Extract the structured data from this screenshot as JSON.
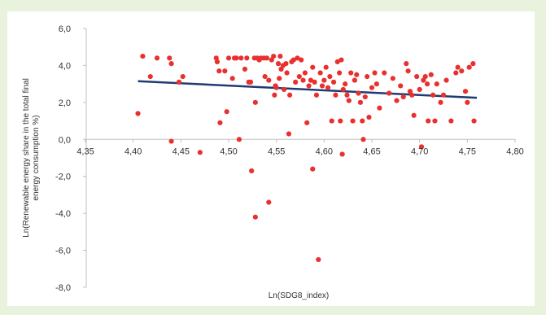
{
  "chart_data": {
    "type": "scatter",
    "title": "",
    "xlabel": "Ln(SDG8_index)",
    "ylabel": "Ln(Renewable energy share in the total final energy consumption %)",
    "ylabel_lines": [
      "Ln(Renewable energy share in the total final",
      "energy consumption %)"
    ],
    "xlim": [
      4.35,
      4.8
    ],
    "ylim": [
      -8.0,
      6.0
    ],
    "x_ticks": [
      4.35,
      4.4,
      4.45,
      4.5,
      4.55,
      4.6,
      4.65,
      4.7,
      4.75,
      4.8
    ],
    "x_tick_labels": [
      "4,35",
      "4,40",
      "4,45",
      "4,50",
      "4,55",
      "4,60",
      "4,65",
      "4,70",
      "4,75",
      "4,80"
    ],
    "y_ticks": [
      6.0,
      4.0,
      2.0,
      0.0,
      -2.0,
      -4.0,
      -6.0,
      -8.0
    ],
    "y_tick_labels": [
      "6,0",
      "4,0",
      "2,0",
      "0,0",
      "-2,0",
      "-4,0",
      "-6,0",
      "-8,0"
    ],
    "grid": false,
    "legend": "none",
    "point_color": "#e8312f",
    "trend_color": "#1f3b73",
    "trendline": {
      "x": [
        4.405,
        4.76
      ],
      "y": [
        3.15,
        2.25
      ]
    },
    "points": [
      [
        4.405,
        1.4
      ],
      [
        4.41,
        4.5
      ],
      [
        4.418,
        3.4
      ],
      [
        4.425,
        4.4
      ],
      [
        4.438,
        4.4
      ],
      [
        4.44,
        4.1
      ],
      [
        4.448,
        3.1
      ],
      [
        4.452,
        3.4
      ],
      [
        4.44,
        -0.1
      ],
      [
        4.47,
        -0.7
      ],
      [
        4.487,
        4.4
      ],
      [
        4.488,
        4.2
      ],
      [
        4.49,
        3.7
      ],
      [
        4.491,
        0.9
      ],
      [
        4.496,
        3.7
      ],
      [
        4.498,
        1.5
      ],
      [
        4.5,
        4.4
      ],
      [
        4.504,
        3.3
      ],
      [
        4.506,
        4.4
      ],
      [
        4.508,
        4.4
      ],
      [
        4.511,
        0.0
      ],
      [
        4.513,
        4.4
      ],
      [
        4.517,
        3.8
      ],
      [
        4.519,
        4.4
      ],
      [
        4.521,
        3.1
      ],
      [
        4.523,
        3.1
      ],
      [
        4.524,
        -1.7
      ],
      [
        4.527,
        4.4
      ],
      [
        4.528,
        2.0
      ],
      [
        4.528,
        -4.2
      ],
      [
        4.53,
        4.4
      ],
      [
        4.532,
        4.3
      ],
      [
        4.534,
        4.4
      ],
      [
        4.537,
        4.4
      ],
      [
        4.538,
        3.4
      ],
      [
        4.54,
        4.4
      ],
      [
        4.542,
        3.2
      ],
      [
        4.542,
        -3.4
      ],
      [
        4.545,
        4.3
      ],
      [
        4.547,
        4.5
      ],
      [
        4.548,
        2.4
      ],
      [
        4.549,
        2.9
      ],
      [
        4.55,
        2.8
      ],
      [
        4.552,
        4.1
      ],
      [
        4.553,
        3.3
      ],
      [
        4.554,
        4.5
      ],
      [
        4.555,
        3.8
      ],
      [
        4.557,
        4.0
      ],
      [
        4.558,
        2.7
      ],
      [
        4.56,
        4.1
      ],
      [
        4.561,
        3.6
      ],
      [
        4.563,
        0.3
      ],
      [
        4.564,
        2.4
      ],
      [
        4.566,
        4.2
      ],
      [
        4.568,
        4.3
      ],
      [
        4.57,
        3.1
      ],
      [
        4.572,
        4.4
      ],
      [
        4.574,
        3.4
      ],
      [
        4.576,
        4.3
      ],
      [
        4.578,
        3.2
      ],
      [
        4.58,
        3.6
      ],
      [
        4.582,
        0.9
      ],
      [
        4.584,
        2.9
      ],
      [
        4.586,
        3.2
      ],
      [
        4.588,
        3.9
      ],
      [
        4.588,
        -1.6
      ],
      [
        4.59,
        3.1
      ],
      [
        4.592,
        2.4
      ],
      [
        4.594,
        -6.5
      ],
      [
        4.596,
        3.6
      ],
      [
        4.598,
        2.9
      ],
      [
        4.6,
        3.2
      ],
      [
        4.602,
        3.9
      ],
      [
        4.604,
        2.8
      ],
      [
        4.606,
        3.4
      ],
      [
        4.608,
        1.0
      ],
      [
        4.61,
        3.1
      ],
      [
        4.612,
        2.4
      ],
      [
        4.614,
        4.2
      ],
      [
        4.616,
        3.6
      ],
      [
        4.617,
        1.0
      ],
      [
        4.618,
        4.3
      ],
      [
        4.619,
        -0.8
      ],
      [
        4.62,
        2.7
      ],
      [
        4.622,
        3.0
      ],
      [
        4.624,
        2.4
      ],
      [
        4.626,
        2.1
      ],
      [
        4.628,
        3.6
      ],
      [
        4.63,
        1.0
      ],
      [
        4.632,
        3.2
      ],
      [
        4.634,
        3.5
      ],
      [
        4.636,
        2.5
      ],
      [
        4.638,
        2.0
      ],
      [
        4.64,
        1.0
      ],
      [
        4.641,
        0.0
      ],
      [
        4.643,
        2.3
      ],
      [
        4.645,
        3.4
      ],
      [
        4.647,
        1.2
      ],
      [
        4.65,
        2.8
      ],
      [
        4.653,
        3.6
      ],
      [
        4.655,
        3.0
      ],
      [
        4.658,
        1.7
      ],
      [
        4.663,
        3.6
      ],
      [
        4.668,
        2.5
      ],
      [
        4.672,
        3.3
      ],
      [
        4.676,
        2.1
      ],
      [
        4.68,
        2.9
      ],
      [
        4.683,
        2.3
      ],
      [
        4.686,
        4.1
      ],
      [
        4.688,
        3.7
      ],
      [
        4.69,
        2.6
      ],
      [
        4.692,
        2.4
      ],
      [
        4.694,
        1.3
      ],
      [
        4.697,
        3.4
      ],
      [
        4.7,
        2.7
      ],
      [
        4.702,
        -0.4
      ],
      [
        4.704,
        3.2
      ],
      [
        4.706,
        3.4
      ],
      [
        4.708,
        3.0
      ],
      [
        4.709,
        1.0
      ],
      [
        4.712,
        3.5
      ],
      [
        4.714,
        2.4
      ],
      [
        4.716,
        1.0
      ],
      [
        4.718,
        3.0
      ],
      [
        4.722,
        2.0
      ],
      [
        4.725,
        2.4
      ],
      [
        4.728,
        3.2
      ],
      [
        4.733,
        1.0
      ],
      [
        4.738,
        3.6
      ],
      [
        4.74,
        3.9
      ],
      [
        4.744,
        3.7
      ],
      [
        4.748,
        2.6
      ],
      [
        4.75,
        2.0
      ],
      [
        4.752,
        3.9
      ],
      [
        4.756,
        4.1
      ],
      [
        4.757,
        1.0
      ]
    ]
  }
}
